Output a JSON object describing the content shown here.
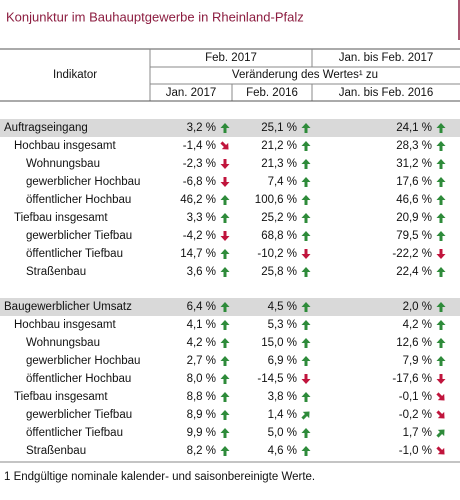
{
  "title": "Konjunktur im Bauhauptgewerbe in Rheinland-Pfalz",
  "header": {
    "indicator": "Indikator",
    "period_current": "Feb. 2017",
    "period_cumulative": "Jan. bis Feb. 2017",
    "change_label": "Veränderung des Wertes¹ zu",
    "columns": [
      "Jan. 2017",
      "Feb. 2016",
      "Jan. bis Feb. 2016"
    ]
  },
  "sections": [
    {
      "label": "Auftragseingang",
      "values": [
        "3,2 %",
        "25,1 %",
        "24,1 %"
      ],
      "groups": [
        {
          "label": "Hochbau insgesamt",
          "values": [
            "-1,4 %",
            "21,2 %",
            "28,3 %"
          ],
          "items": [
            {
              "label": "Wohnungsbau",
              "values": [
                "-2,3 %",
                "21,3 %",
                "31,2 %"
              ]
            },
            {
              "label": "gewerblicher Hochbau",
              "values": [
                "-6,8 %",
                "7,4 %",
                "17,6 %"
              ]
            },
            {
              "label": "öffentlicher Hochbau",
              "values": [
                "46,2 %",
                "100,6 %",
                "46,6 %"
              ]
            }
          ]
        },
        {
          "label": "Tiefbau insgesamt",
          "values": [
            "3,3 %",
            "25,2 %",
            "20,9 %"
          ],
          "items": [
            {
              "label": "gewerblicher Tiefbau",
              "values": [
                "-4,2 %",
                "68,8 %",
                "79,5 %"
              ]
            },
            {
              "label": "öffentlicher Tiefbau",
              "values": [
                "14,7 %",
                "-10,2 %",
                "-22,2 %"
              ]
            },
            {
              "label": "Straßenbau",
              "values": [
                "3,6 %",
                "25,8 %",
                "22,4 %"
              ]
            }
          ]
        }
      ]
    },
    {
      "label": "Baugewerblicher Umsatz",
      "values": [
        "6,4 %",
        "4,5 %",
        "2,0 %"
      ],
      "groups": [
        {
          "label": "Hochbau insgesamt",
          "values": [
            "4,1 %",
            "5,3 %",
            "4,2 %"
          ],
          "items": [
            {
              "label": "Wohnungsbau",
              "values": [
                "4,2 %",
                "15,0 %",
                "12,6 %"
              ]
            },
            {
              "label": "gewerblicher Hochbau",
              "values": [
                "2,7 %",
                "6,9 %",
                "7,9 %"
              ]
            },
            {
              "label": "öffentlicher Hochbau",
              "values": [
                "8,0 %",
                "-14,5 %",
                "-17,6 %"
              ]
            }
          ]
        },
        {
          "label": "Tiefbau insgesamt",
          "values": [
            "8,8 %",
            "3,8 %",
            "-0,1 %"
          ],
          "items": [
            {
              "label": "gewerblicher Tiefbau",
              "values": [
                "8,9 %",
                "1,4 %",
                "-0,2 %"
              ]
            },
            {
              "label": "öffentlicher Tiefbau",
              "values": [
                "9,9 %",
                "5,0 %",
                "1,7 %"
              ]
            },
            {
              "label": "Straßenbau",
              "values": [
                "8,2 %",
                "4,6 %",
                "-1,0 %"
              ]
            }
          ]
        }
      ]
    }
  ],
  "footnote": "1 Endgültige nominale kalender- und saisonbereinigte Werte."
}
